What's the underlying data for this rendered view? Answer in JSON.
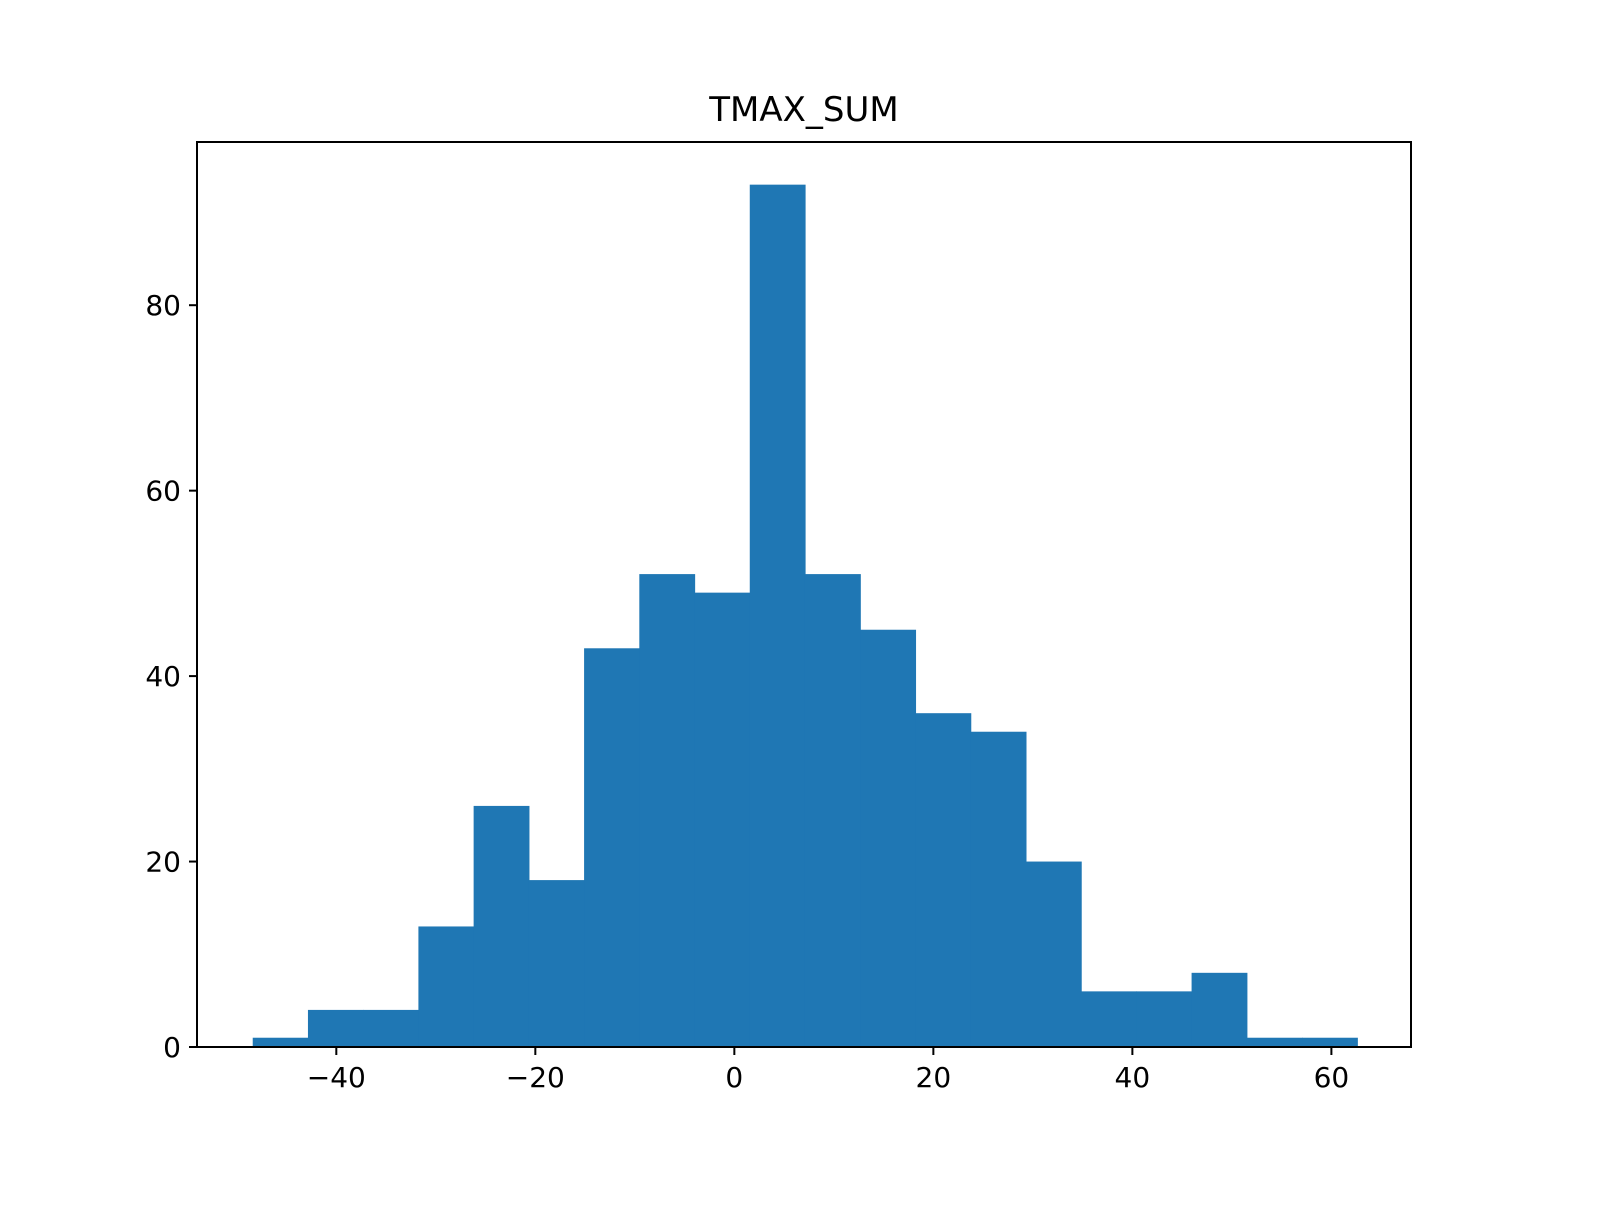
{
  "chart_data": {
    "type": "bar",
    "title": "TMAX_SUM",
    "xlabel": "",
    "ylabel": "",
    "xlim": [
      -54,
      68
    ],
    "ylim": [
      0,
      97.6
    ],
    "x_ticks": [
      -40,
      -20,
      0,
      20,
      40,
      60
    ],
    "x_tick_labels": [
      "−40",
      "−20",
      "0",
      "20",
      "40",
      "60"
    ],
    "y_ticks": [
      0,
      20,
      40,
      60,
      80
    ],
    "y_tick_labels": [
      "0",
      "20",
      "40",
      "60",
      "80"
    ],
    "bin_edges": [
      -48.4,
      -42.85,
      -37.3,
      -31.75,
      -26.2,
      -20.65,
      -15.1,
      -9.55,
      -4.0,
      1.55,
      7.1,
      12.65,
      18.2,
      23.75,
      29.3,
      34.85,
      40.4,
      45.95,
      51.5,
      57.05,
      62.6
    ],
    "values": [
      1,
      4,
      4,
      13,
      26,
      18,
      43,
      51,
      49,
      93,
      51,
      45,
      36,
      34,
      20,
      6,
      6,
      8,
      1,
      1
    ],
    "bar_color": "#1f77b4",
    "grid": false,
    "legend": "none"
  }
}
